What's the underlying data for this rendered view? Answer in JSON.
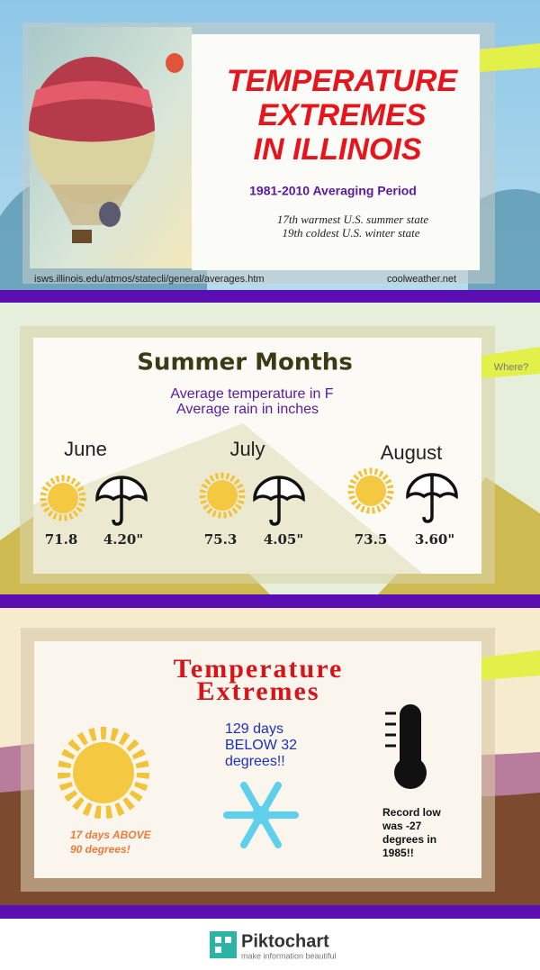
{
  "header": {
    "title": [
      "TEMPERATURE",
      "EXTREMES",
      "IN ILLINOIS"
    ],
    "subtitle": "1981-2010 Averaging Period",
    "facts": [
      "17th warmest U.S. summer state",
      "19th coldest U.S. winter state"
    ],
    "source": "isws.illinois.edu/atmos/statecli/general/averages.htm",
    "credit": "coolweather.net"
  },
  "summer": {
    "title": "Summer Months",
    "tag": "Where?",
    "notes": [
      "Average temperature in F",
      "Average rain in inches"
    ],
    "months": [
      {
        "name": "June",
        "temperature": "71.8",
        "rain": "4.20\""
      },
      {
        "name": "July",
        "temperature": "75.3",
        "rain": "4.05\""
      },
      {
        "name": "August",
        "temperature": "73.5",
        "rain": "3.60\""
      }
    ]
  },
  "extremes": {
    "title": [
      "Temperature",
      "Extremes"
    ],
    "hot": [
      "17 days ABOVE",
      "90 degrees!"
    ],
    "cold": [
      "129 days",
      "BELOW 32",
      "degrees!!"
    ],
    "record": [
      "Record low",
      "was -27",
      "degrees in",
      "1985!!"
    ]
  },
  "footer": {
    "brand": "Piktochart",
    "tagline": "make information beautiful"
  }
}
